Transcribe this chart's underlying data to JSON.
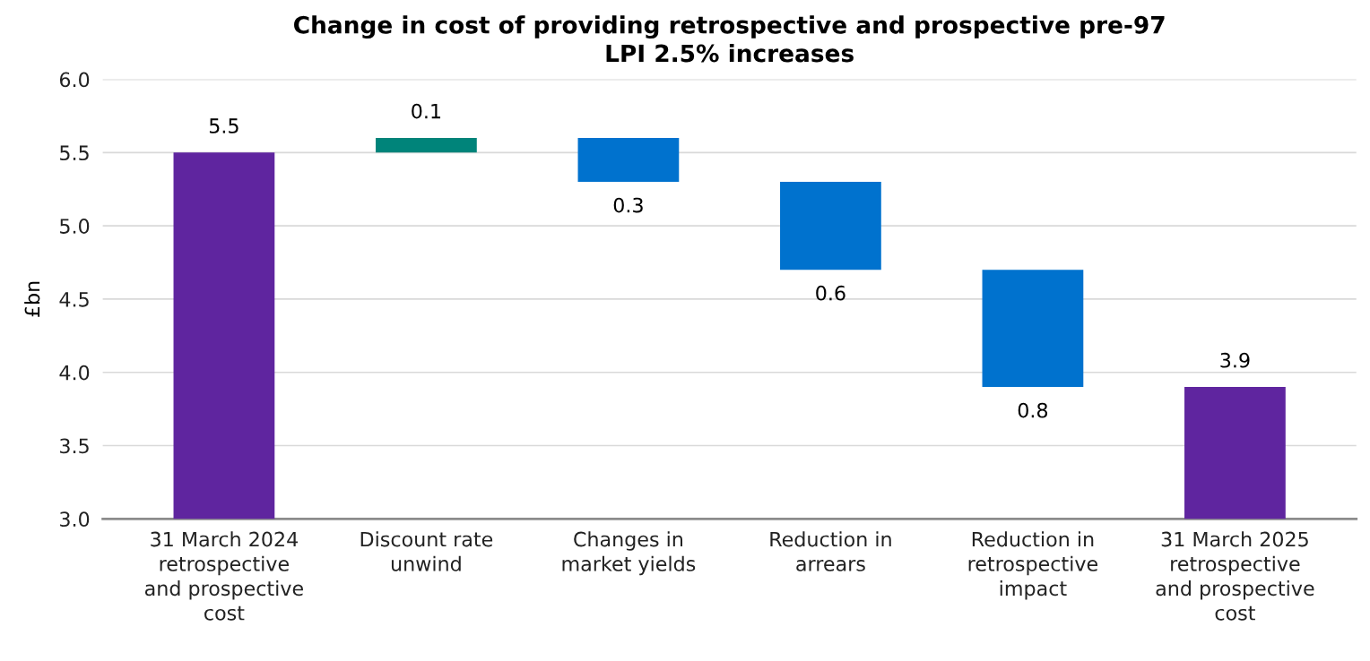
{
  "chart_data": {
    "type": "bar",
    "title": "Change in cost of providing retrospective and prospective pre-97\nLPI 2.5% increases",
    "ylabel": "£bn",
    "categories": [
      "31 March 2024\nretrospective\nand prospective\ncost",
      "Discount rate\nunwind",
      "Changes in\nmarket yields",
      "Reduction in\narrears",
      "Reduction in\nretrospective\nimpact",
      "31 March 2025\nretrospective\nand prospective\ncost"
    ],
    "values": [
      5.5,
      0.1,
      -0.3,
      -0.6,
      -0.8,
      3.9
    ],
    "base": [
      0,
      5.5,
      5.6,
      5.3,
      4.7,
      0
    ],
    "colors": [
      "#5f259f",
      "#00847a",
      "#0072ce",
      "#0072ce",
      "#0072ce",
      "#5f259f"
    ],
    "value_labels": [
      "5.5",
      "0.1",
      "0.3",
      "0.6",
      "0.8",
      "3.9"
    ],
    "ylim": [
      3.0,
      6.0
    ],
    "yticks": [
      {
        "value": 3.0,
        "label": "3.0"
      },
      {
        "value": 3.5,
        "label": "3.5"
      },
      {
        "value": 4.0,
        "label": "4.0"
      },
      {
        "value": 4.5,
        "label": "4.5"
      },
      {
        "value": 5.0,
        "label": "5.0"
      },
      {
        "value": 5.5,
        "label": "5.5"
      },
      {
        "value": 6.0,
        "label": "6.0"
      }
    ],
    "grid": "y",
    "legend": false
  }
}
